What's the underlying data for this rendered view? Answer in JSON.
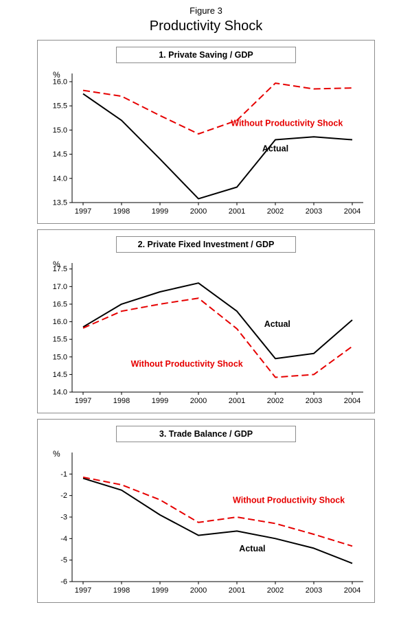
{
  "figure": {
    "label": "Figure 3",
    "title": "Productivity Shock"
  },
  "colors": {
    "actual": "#000000",
    "counterfactual": "#e60000",
    "panel_border": "#8c8c8c"
  },
  "chart_data": [
    {
      "type": "line",
      "title": "1. Private Saving / GDP",
      "ylabel": "%",
      "categories": [
        "1997",
        "1998",
        "1999",
        "2000",
        "2001",
        "2002",
        "2003",
        "2004"
      ],
      "ylim": [
        13.5,
        16.17
      ],
      "yticks": [
        13.5,
        14.0,
        14.5,
        15.0,
        15.5,
        16.0
      ],
      "ytick_labels": [
        "13.5",
        "14.0",
        "14.5",
        "15.0",
        "15.5",
        "16.0"
      ],
      "grid": false,
      "legend": "inline-annotations",
      "series": [
        {
          "name": "Actual",
          "color": "#000000",
          "dash": "",
          "values": [
            15.75,
            15.2,
            14.4,
            13.58,
            13.82,
            14.8,
            14.86,
            14.8
          ]
        },
        {
          "name": "Without Productivity Shock",
          "color": "#e60000",
          "dash": "10 5",
          "values": [
            15.82,
            15.7,
            15.3,
            14.92,
            15.2,
            15.97,
            15.85,
            15.87
          ]
        }
      ],
      "annotations": [
        {
          "text": "Without Productivity Shock",
          "x": 5.3,
          "y": 15.08,
          "color": "#e60000"
        },
        {
          "text": "Actual",
          "x": 5.0,
          "y": 14.56,
          "color": "#000000"
        }
      ]
    },
    {
      "type": "line",
      "title": "2. Private Fixed Investment / GDP",
      "ylabel": "%",
      "categories": [
        "1997",
        "1998",
        "1999",
        "2000",
        "2001",
        "2002",
        "2003",
        "2004"
      ],
      "ylim": [
        14.0,
        17.67
      ],
      "yticks": [
        14.0,
        14.5,
        15.0,
        15.5,
        16.0,
        16.5,
        17.0,
        17.5
      ],
      "ytick_labels": [
        "14.0",
        "14.5",
        "15.0",
        "15.5",
        "16.0",
        "16.5",
        "17.0",
        "17.5"
      ],
      "grid": false,
      "legend": "inline-annotations",
      "series": [
        {
          "name": "Actual",
          "color": "#000000",
          "dash": "",
          "values": [
            15.85,
            16.5,
            16.85,
            17.1,
            16.3,
            14.95,
            15.1,
            16.05
          ]
        },
        {
          "name": "Without Productivity Shock",
          "color": "#e60000",
          "dash": "10 5",
          "values": [
            15.82,
            16.3,
            16.5,
            16.67,
            15.8,
            14.42,
            14.5,
            15.3
          ]
        }
      ],
      "annotations": [
        {
          "text": "Actual",
          "x": 5.05,
          "y": 15.85,
          "color": "#000000"
        },
        {
          "text": "Without Productivity Shock",
          "x": 2.7,
          "y": 14.72,
          "color": "#e60000"
        }
      ]
    },
    {
      "type": "line",
      "title": "3. Trade Balance / GDP",
      "ylabel": "%",
      "categories": [
        "1997",
        "1998",
        "1999",
        "2000",
        "2001",
        "2002",
        "2003",
        "2004"
      ],
      "ylim": [
        -6,
        0
      ],
      "yticks": [
        -1,
        -2,
        -3,
        -4,
        -5,
        -6
      ],
      "ytick_labels": [
        "-1",
        "-2",
        "-3",
        "-4",
        "-5",
        "-6"
      ],
      "grid": false,
      "legend": "inline-annotations",
      "series": [
        {
          "name": "Actual",
          "color": "#000000",
          "dash": "",
          "values": [
            -1.2,
            -1.75,
            -2.9,
            -3.85,
            -3.65,
            -4.0,
            -4.45,
            -5.15
          ]
        },
        {
          "name": "Without Productivity Shock",
          "color": "#e60000",
          "dash": "10 5",
          "values": [
            -1.15,
            -1.5,
            -2.2,
            -3.25,
            -3.0,
            -3.3,
            -3.8,
            -4.35
          ]
        }
      ],
      "annotations": [
        {
          "text": "Without Productivity Shock",
          "x": 5.35,
          "y": -2.35,
          "color": "#e60000"
        },
        {
          "text": "Actual",
          "x": 4.4,
          "y": -4.6,
          "color": "#000000"
        }
      ]
    }
  ]
}
